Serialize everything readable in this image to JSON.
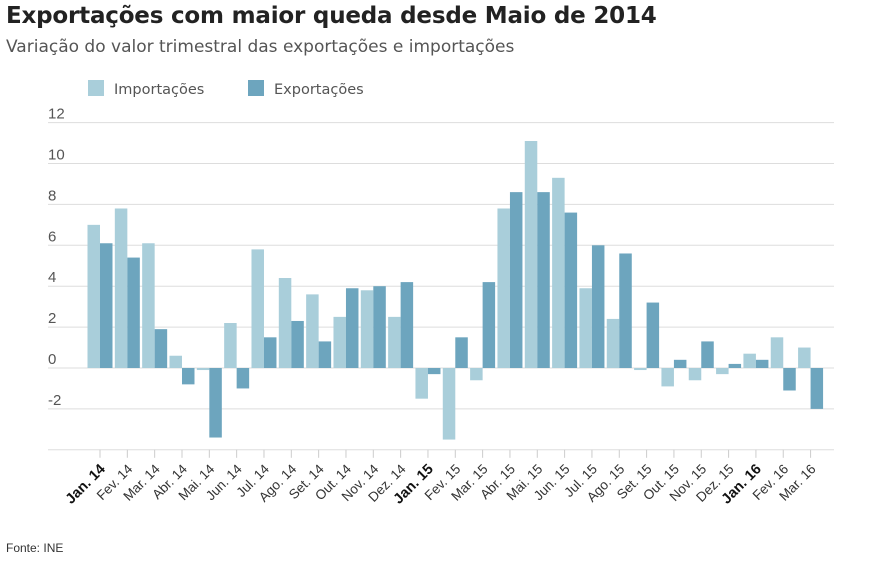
{
  "chart_data": {
    "type": "bar",
    "title": "Exportações com maior queda desde Maio de 2014",
    "subtitle": "Variação do valor trimestral das exportações e importações",
    "source": "Fonte: INE",
    "xlabel": "",
    "ylabel": "",
    "ylim": [
      -4,
      12
    ],
    "yticks": [
      12,
      10,
      8,
      6,
      4,
      2,
      0,
      -2
    ],
    "grid": true,
    "legend_position": "top-left",
    "categories": [
      "Jan. 14",
      "Fev. 14",
      "Mar. 14",
      "Abr. 14",
      "Mai. 14",
      "Jun. 14",
      "Jul. 14",
      "Ago. 14",
      "Set. 14",
      "Out. 14",
      "Nov. 14",
      "Dez. 14",
      "Jan. 15",
      "Fev. 15",
      "Mar. 15",
      "Abr. 15",
      "Mai. 15",
      "Jun. 15",
      "Jul. 15",
      "Ago. 15",
      "Set. 15",
      "Out. 15",
      "Nov. 15",
      "Dez. 15",
      "Jan. 16",
      "Fev. 16",
      "Mar. 16"
    ],
    "bold_categories": [
      "Jan. 14",
      "Jan. 15",
      "Jan. 16"
    ],
    "series": [
      {
        "name": "Importações",
        "color": "#a9ceda",
        "values": [
          7.0,
          7.8,
          6.1,
          0.6,
          -0.1,
          2.2,
          5.8,
          4.4,
          3.6,
          2.5,
          3.8,
          2.5,
          -1.5,
          -3.5,
          -0.6,
          7.8,
          11.1,
          9.3,
          3.9,
          2.4,
          -0.1,
          -0.9,
          -0.6,
          -0.3,
          0.7,
          1.5,
          1.0
        ]
      },
      {
        "name": "Exportações",
        "color": "#6da5be",
        "values": [
          6.1,
          5.4,
          1.9,
          -0.8,
          -3.4,
          -1.0,
          1.5,
          2.3,
          1.3,
          3.9,
          4.0,
          4.2,
          -0.3,
          1.5,
          4.2,
          8.6,
          8.6,
          7.6,
          6.0,
          5.6,
          3.2,
          0.4,
          1.3,
          0.2,
          0.4,
          -1.1,
          -2.0
        ]
      }
    ]
  }
}
